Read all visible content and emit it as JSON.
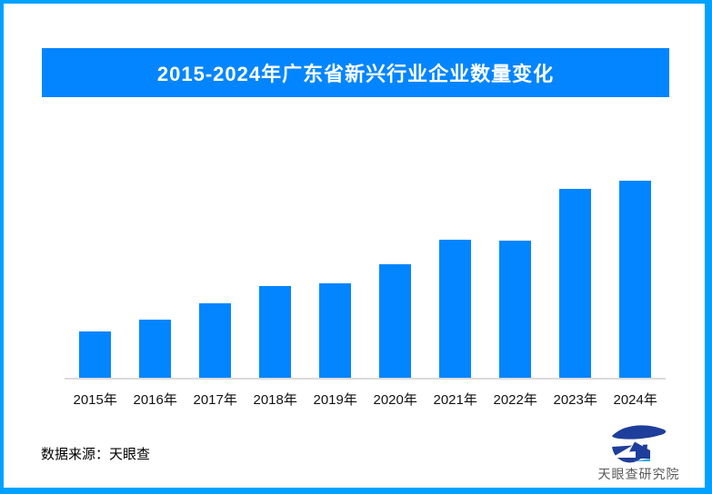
{
  "page": {
    "background": "#FFFFFF",
    "border_color": "#00A1FF"
  },
  "banner": {
    "title": "2015-2024年广东省新兴行业企业数量变化",
    "bg": "#0385FF",
    "text_color": "#FFFFFF"
  },
  "chart_data": {
    "type": "bar",
    "title": "2015-2024年广东省新兴行业企业数量变化",
    "categories": [
      "2015年",
      "2016年",
      "2017年",
      "2018年",
      "2019年",
      "2020年",
      "2021年",
      "2022年",
      "2023年",
      "2024年"
    ],
    "values": [
      24,
      30,
      38,
      47,
      48,
      58,
      70,
      69.5,
      96,
      100
    ],
    "value_scale_note": "no numeric y-axis or data labels shown in image; values are relative bar heights with 2024 = 100",
    "xlabel": "",
    "ylabel": "",
    "ylim": [
      0,
      100
    ],
    "grid": false,
    "legend": "none",
    "bar_color": "#0385FF",
    "axis_line_color": "#DADADA"
  },
  "footer": {
    "source_label": "数据来源：天眼查"
  },
  "brand": {
    "name": "天眼查研究院",
    "icon": "tianyancha-logo-icon",
    "icon_navy": "#1E3E9B",
    "icon_accent": "#35A7DD",
    "text_color": "#58595B"
  }
}
